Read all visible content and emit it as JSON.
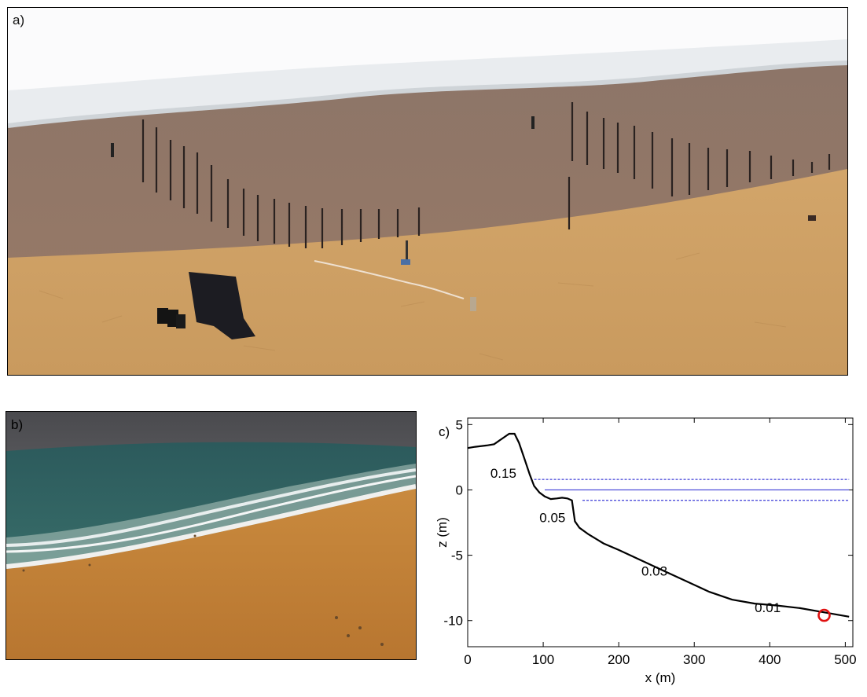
{
  "panels": {
    "a": {
      "label": "a)"
    },
    "b": {
      "label": "b)"
    }
  },
  "chart_data": {
    "type": "line",
    "panel_label": "c)",
    "xlabel": "x (m)",
    "ylabel": "z (m)",
    "xlim": [
      0,
      510
    ],
    "ylim": [
      -12,
      5.5
    ],
    "x_ticks": [
      0,
      100,
      200,
      300,
      400,
      500
    ],
    "y_ticks": [
      5,
      0,
      -5,
      -10
    ],
    "grid": false,
    "profile": {
      "color": "#000000",
      "x": [
        0,
        10,
        25,
        35,
        45,
        55,
        62,
        68,
        75,
        82,
        88,
        95,
        102,
        110,
        118,
        125,
        132,
        138,
        142,
        148,
        160,
        180,
        200,
        230,
        260,
        290,
        320,
        350,
        380,
        410,
        440,
        470,
        490,
        505
      ],
      "z": [
        3.2,
        3.3,
        3.4,
        3.5,
        3.9,
        4.3,
        4.3,
        3.6,
        2.4,
        1.2,
        0.3,
        -0.2,
        -0.5,
        -0.7,
        -0.65,
        -0.6,
        -0.65,
        -0.8,
        -2.4,
        -2.9,
        -3.4,
        -4.1,
        -4.6,
        -5.4,
        -6.2,
        -7.0,
        -7.8,
        -8.4,
        -8.7,
        -8.85,
        -9.05,
        -9.35,
        -9.55,
        -9.7
      ]
    },
    "water_levels": [
      {
        "z": 0.8,
        "style": "dashed",
        "x_start": 88,
        "x_end": 505,
        "color": "#3a3ad6"
      },
      {
        "z": 0.0,
        "style": "solid",
        "x_start": 102,
        "x_end": 505,
        "color": "#3a3ad6"
      },
      {
        "z": -0.8,
        "style": "dashed",
        "x_start": 152,
        "x_end": 505,
        "color": "#3a3ad6"
      }
    ],
    "slope_annotations": [
      {
        "text": "0.15",
        "x": 30,
        "z": 1.3
      },
      {
        "text": "0.05",
        "x": 95,
        "z": -2.1
      },
      {
        "text": "0.03",
        "x": 230,
        "z": -6.2
      },
      {
        "text": "0.01",
        "x": 380,
        "z": -9.0
      }
    ],
    "marker": {
      "x": 472,
      "z": -9.6,
      "color": "#e01010",
      "shape": "circle"
    }
  }
}
